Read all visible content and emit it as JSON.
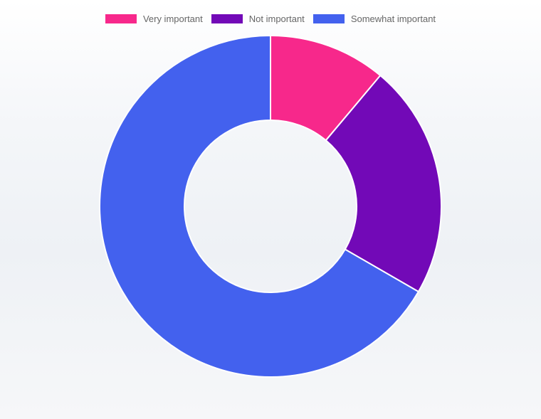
{
  "chart_data": {
    "type": "pie",
    "subtype": "doughnut",
    "categories": [
      "Very important",
      "Not important",
      "Somewhat important"
    ],
    "values": [
      10,
      20,
      60
    ],
    "colors": [
      "#f7288b",
      "#7209b7",
      "#4361ee"
    ],
    "legend_position": "top",
    "title": ""
  }
}
